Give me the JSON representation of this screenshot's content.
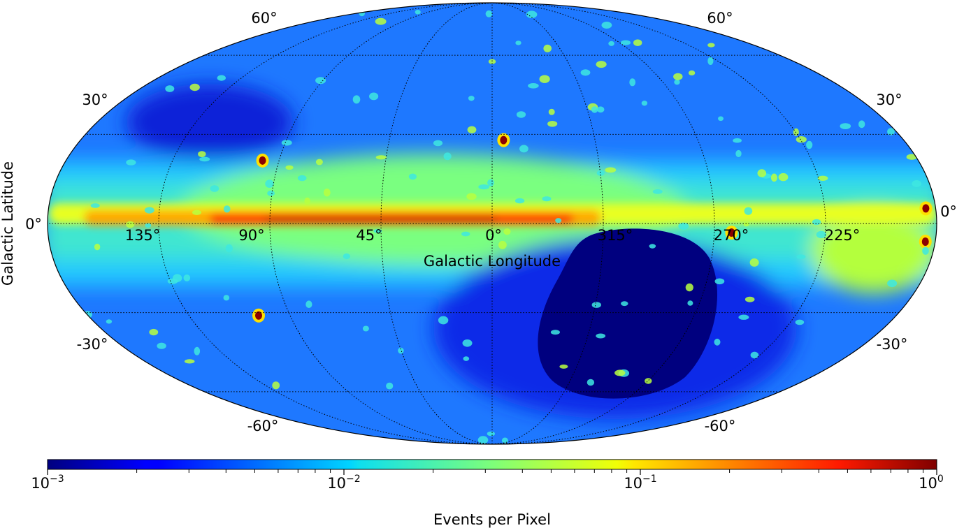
{
  "chart_data": {
    "type": "heatmap",
    "projection": "mollweide",
    "coordinate_system": "galactic",
    "xlabel": "Galactic Longitude",
    "ylabel": "Galactic Latitude",
    "longitude_ticks": [
      "135°",
      "90°",
      "45°",
      "0°",
      "315°",
      "270°",
      "225°"
    ],
    "latitude_ticks_left": [
      "60°",
      "30°",
      "0°",
      "-30°",
      "-60°"
    ],
    "latitude_ticks_right": [
      "60°",
      "30°",
      "0°",
      "-30°",
      "-60°"
    ],
    "grid": true,
    "colormap": "jet",
    "color_scale": "log",
    "colorbar": {
      "label": "Events per Pixel",
      "range": [
        0.001,
        1
      ],
      "orientation": "horizontal",
      "position": "bottom",
      "ticks": [
        {
          "base": "10",
          "exp": "−3"
        },
        {
          "base": "10",
          "exp": "−2"
        },
        {
          "base": "10",
          "exp": "−1"
        },
        {
          "base": "10",
          "exp": "0"
        }
      ]
    },
    "features": {
      "galactic_plane_max": 1.0,
      "background_typical": 0.01,
      "southern_exposure_gap_value": 0.001,
      "point_sources": [
        {
          "lon": 97,
          "lat": 21,
          "value": 0.6
        },
        {
          "lon": 355,
          "lat": 28,
          "value": 0.4
        },
        {
          "lon": 263,
          "lat": -3,
          "value": 1.0
        },
        {
          "lon": 184,
          "lat": -6,
          "value": 0.9
        },
        {
          "lon": 184,
          "lat": 5,
          "value": 0.9
        },
        {
          "lon": 104,
          "lat": -31,
          "value": 0.4
        }
      ]
    }
  }
}
